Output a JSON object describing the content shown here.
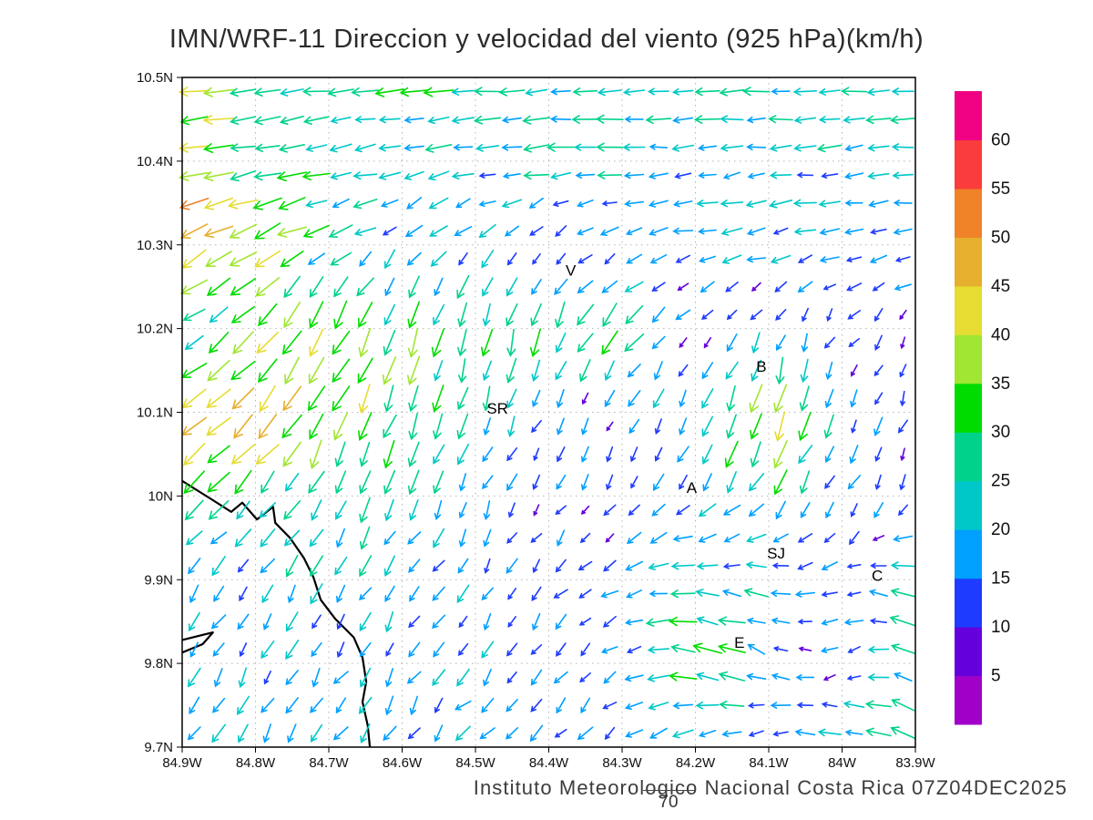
{
  "title": "IMN/WRF-11 Direccion y velocidad del viento (925 hPa)(km/h)",
  "footer": {
    "credit": "Instituto Meteorologico Nacional Costa Rica 07Z04DEC2025",
    "hour_label": "70"
  },
  "chart_data": {
    "type": "vector-field-map",
    "title": "IMN/WRF-11 Direccion y velocidad del viento (925 hPa)(km/h)",
    "units": "km/h",
    "level": "925 hPa",
    "grid": {
      "show": true,
      "style": "dotted"
    },
    "x_axis": {
      "min": -84.9,
      "max": -83.9,
      "tick_values": [
        -84.9,
        -84.8,
        -84.7,
        -84.6,
        -84.5,
        -84.4,
        -84.3,
        -84.2,
        -84.1,
        -84.0,
        -83.9
      ],
      "tick_labels": [
        "84.9W",
        "84.8W",
        "84.7W",
        "84.6W",
        "84.5W",
        "84.4W",
        "84.3W",
        "84.2W",
        "84.1W",
        "84W",
        "83.9W"
      ]
    },
    "y_axis": {
      "min": 9.7,
      "max": 10.5,
      "tick_values": [
        10.5,
        10.4,
        10.3,
        10.2,
        10.1,
        10.0,
        9.9,
        9.8,
        9.7
      ],
      "tick_labels": [
        "10.5N",
        "10.4N",
        "10.3N",
        "10.2N",
        "10.1N",
        "10N",
        "9.9N",
        "9.8N",
        "9.7N"
      ]
    },
    "colorbar": {
      "position": "right",
      "levels": [
        5,
        10,
        15,
        20,
        25,
        30,
        35,
        40,
        45,
        50,
        55,
        60
      ],
      "colors": [
        "#a000c8",
        "#6400dc",
        "#1e3cff",
        "#00a0ff",
        "#00c8c8",
        "#00d28c",
        "#00dc00",
        "#a0e632",
        "#e6dc32",
        "#e6af2d",
        "#f08228",
        "#fa3c3c",
        "#f00082"
      ]
    },
    "stations": [
      {
        "label": "V",
        "lon": -84.37,
        "lat": 10.27
      },
      {
        "label": "SR",
        "lon": -84.47,
        "lat": 10.105
      },
      {
        "label": "B",
        "lon": -84.11,
        "lat": 10.155
      },
      {
        "label": "A",
        "lon": -84.205,
        "lat": 10.01
      },
      {
        "label": "SJ",
        "lon": -84.09,
        "lat": 9.932
      },
      {
        "label": "C",
        "lon": -83.952,
        "lat": 9.905
      },
      {
        "label": "E",
        "lon": -84.14,
        "lat": 9.825
      }
    ],
    "coastlines": [
      [
        [
          -84.9,
          10.018
        ],
        [
          -84.86,
          9.996
        ],
        [
          -84.833,
          9.981
        ],
        [
          -84.818,
          9.992
        ],
        [
          -84.798,
          9.972
        ],
        [
          -84.776,
          9.987
        ],
        [
          -84.773,
          9.968
        ],
        [
          -84.753,
          9.95
        ],
        [
          -84.734,
          9.926
        ],
        [
          -84.721,
          9.903
        ],
        [
          -84.711,
          9.876
        ],
        [
          -84.691,
          9.853
        ],
        [
          -84.666,
          9.831
        ],
        [
          -84.654,
          9.807
        ],
        [
          -84.649,
          9.778
        ],
        [
          -84.654,
          9.754
        ],
        [
          -84.647,
          9.726
        ],
        [
          -84.644,
          9.7
        ]
      ],
      [
        [
          -84.9,
          9.828
        ],
        [
          -84.858,
          9.837
        ],
        [
          -84.872,
          9.823
        ],
        [
          -84.9,
          9.813
        ]
      ]
    ],
    "wind_field": {
      "description": "Wind vectors at 925 hPa; arrow direction = wind direction, color = speed in km/h per colorbar",
      "lon0": -84.9,
      "dlon": 0.1,
      "lat0": 10.5,
      "dlat": 0.1,
      "u": [
        [
          -37,
          -33,
          -30,
          -28,
          -27,
          -26,
          -25,
          -24,
          -24,
          -23,
          -22
        ],
        [
          -35,
          -30,
          -24,
          -22,
          -22,
          -23,
          -22,
          -21,
          -20,
          -20,
          -19
        ],
        [
          -50,
          -34,
          -20,
          -14,
          -12,
          -10,
          -12,
          -15,
          -17,
          -17,
          -17
        ],
        [
          -10,
          -26,
          -16,
          -9,
          -7,
          -8,
          -22,
          -6,
          -5,
          -5,
          -6
        ],
        [
          -32,
          -34,
          -16,
          -9,
          -7,
          -6,
          -6,
          -9,
          -12,
          -6,
          -5
        ],
        [
          -26,
          -18,
          -13,
          -9,
          -7,
          -6,
          -6,
          -11,
          -13,
          -9,
          -6
        ],
        [
          -11,
          -10,
          -9,
          -9,
          -8,
          -7,
          -14,
          -26,
          -19,
          -11,
          -23
        ],
        [
          -9,
          -9,
          -10,
          -9,
          -10,
          -9,
          -13,
          -36,
          -17,
          -11,
          -25
        ],
        [
          -11,
          -10,
          -11,
          -11,
          -12,
          -11,
          -11,
          -14,
          -16,
          -20,
          -28
        ]
      ],
      "v": [
        [
          -3,
          -3,
          -3,
          -2,
          -2,
          -2,
          -1,
          -1,
          -1,
          -1,
          -1
        ],
        [
          -6,
          -5,
          -4,
          -4,
          -3,
          -3,
          -2,
          -2,
          -2,
          -2,
          -2
        ],
        [
          -26,
          -18,
          -12,
          -12,
          -12,
          -8,
          -5,
          -4,
          -4,
          -3,
          -3
        ],
        [
          -12,
          -26,
          -30,
          -30,
          -26,
          -26,
          -22,
          -8,
          -12,
          -9,
          -11
        ],
        [
          -30,
          -34,
          -34,
          -30,
          -24,
          -13,
          -10,
          -19,
          -44,
          -15,
          -13
        ],
        [
          -20,
          -17,
          -26,
          -19,
          -15,
          -11,
          -9,
          -15,
          -22,
          -14,
          -12
        ],
        [
          -15,
          -16,
          -18,
          -15,
          -13,
          -11,
          -7,
          3,
          5,
          -5,
          9
        ],
        [
          -15,
          -16,
          -18,
          -15,
          -13,
          -12,
          -9,
          6,
          8,
          -5,
          10
        ],
        [
          -13,
          -14,
          -15,
          -13,
          -12,
          -11,
          -9,
          -6,
          -4,
          5,
          9
        ]
      ]
    }
  }
}
